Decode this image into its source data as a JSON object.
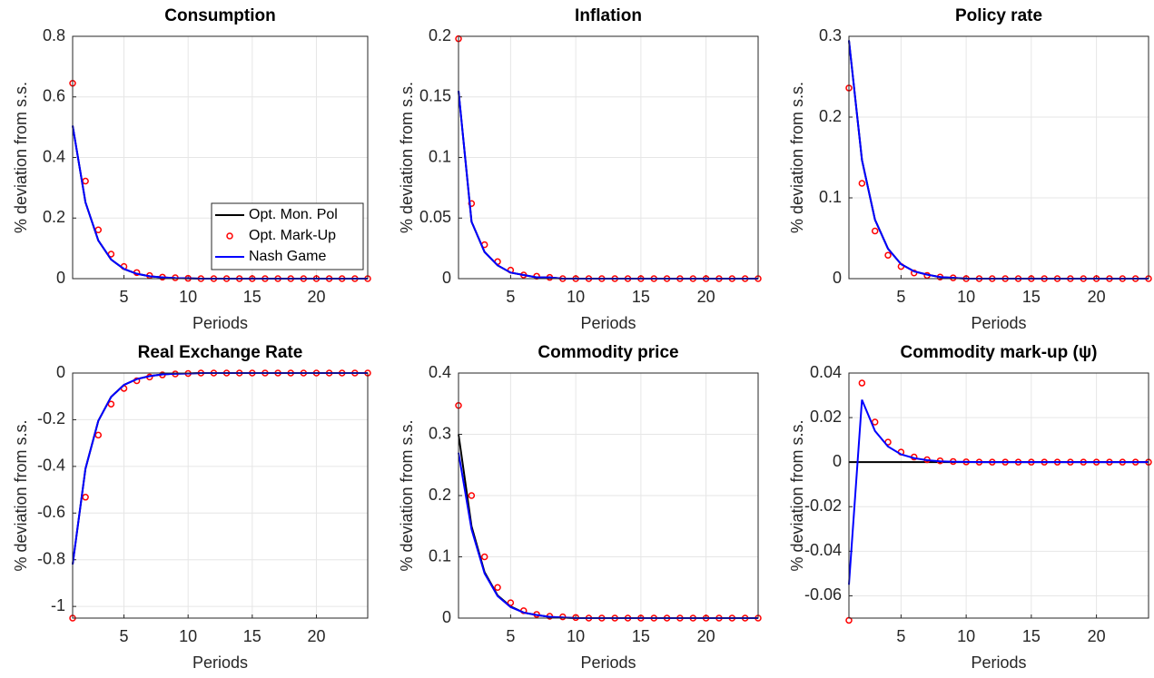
{
  "chart_data": [
    {
      "type": "line",
      "title": "Consumption",
      "xlabel": "Periods",
      "ylabel": "% deviation from s.s.",
      "x": [
        1,
        2,
        3,
        4,
        5,
        6,
        7,
        8,
        9,
        10,
        11,
        12,
        13,
        14,
        15,
        16,
        17,
        18,
        19,
        20,
        21,
        22,
        23,
        24
      ],
      "xlim": [
        1,
        24
      ],
      "xticks": [
        5,
        10,
        15,
        20
      ],
      "ylim": [
        0,
        0.8
      ],
      "yticks": [
        0,
        0.2,
        0.4,
        0.6,
        0.8
      ],
      "grid": true,
      "legend": "southeast",
      "series": [
        {
          "name": "Opt. Mon. Pol",
          "color": "#000000",
          "mode": "line",
          "values": [
            0.505,
            0.252,
            0.126,
            0.063,
            0.032,
            0.016,
            0.008,
            0.004,
            0.002,
            0.001,
            0,
            0,
            0,
            0,
            0,
            0,
            0,
            0,
            0,
            0,
            0,
            0,
            0,
            0
          ]
        },
        {
          "name": "Opt. Mark-Up",
          "color": "#ff0000",
          "mode": "markers",
          "values": [
            0.645,
            0.322,
            0.161,
            0.081,
            0.04,
            0.02,
            0.01,
            0.005,
            0.003,
            0.001,
            0,
            0,
            0,
            0,
            0,
            0,
            0,
            0,
            0,
            0,
            0,
            0,
            0,
            0
          ]
        },
        {
          "name": "Nash Game",
          "color": "#0000ff",
          "mode": "line",
          "values": [
            0.505,
            0.252,
            0.126,
            0.063,
            0.032,
            0.016,
            0.008,
            0.004,
            0.002,
            0.001,
            0,
            0,
            0,
            0,
            0,
            0,
            0,
            0,
            0,
            0,
            0,
            0,
            0,
            0
          ]
        }
      ]
    },
    {
      "type": "line",
      "title": "Inflation",
      "xlabel": "Periods",
      "ylabel": "% deviation from s.s.",
      "x": [
        1,
        2,
        3,
        4,
        5,
        6,
        7,
        8,
        9,
        10,
        11,
        12,
        13,
        14,
        15,
        16,
        17,
        18,
        19,
        20,
        21,
        22,
        23,
        24
      ],
      "xlim": [
        1,
        24
      ],
      "xticks": [
        5,
        10,
        15,
        20
      ],
      "ylim": [
        0,
        0.2
      ],
      "yticks": [
        0,
        0.05,
        0.1,
        0.15,
        0.2
      ],
      "grid": true,
      "series": [
        {
          "color": "#000000",
          "mode": "line",
          "values": [
            0.155,
            0.047,
            0.022,
            0.011,
            0.005,
            0.003,
            0.001,
            0.001,
            0,
            0,
            0,
            0,
            0,
            0,
            0,
            0,
            0,
            0,
            0,
            0,
            0,
            0,
            0,
            0
          ]
        },
        {
          "color": "#ff0000",
          "mode": "markers",
          "values": [
            0.198,
            0.062,
            0.028,
            0.014,
            0.007,
            0.003,
            0.002,
            0.001,
            0,
            0,
            0,
            0,
            0,
            0,
            0,
            0,
            0,
            0,
            0,
            0,
            0,
            0,
            0,
            0
          ]
        },
        {
          "color": "#0000ff",
          "mode": "line",
          "values": [
            0.155,
            0.047,
            0.022,
            0.011,
            0.005,
            0.003,
            0.001,
            0.001,
            0,
            0,
            0,
            0,
            0,
            0,
            0,
            0,
            0,
            0,
            0,
            0,
            0,
            0,
            0,
            0
          ]
        }
      ]
    },
    {
      "type": "line",
      "title": "Policy rate",
      "xlabel": "Periods",
      "ylabel": "% deviation from s.s.",
      "x": [
        1,
        2,
        3,
        4,
        5,
        6,
        7,
        8,
        9,
        10,
        11,
        12,
        13,
        14,
        15,
        16,
        17,
        18,
        19,
        20,
        21,
        22,
        23,
        24
      ],
      "xlim": [
        1,
        24
      ],
      "xticks": [
        5,
        10,
        15,
        20
      ],
      "ylim": [
        0,
        0.3
      ],
      "yticks": [
        0,
        0.1,
        0.2,
        0.3
      ],
      "grid": true,
      "series": [
        {
          "color": "#000000",
          "mode": "line",
          "values": [
            0.295,
            0.147,
            0.073,
            0.037,
            0.018,
            0.009,
            0.005,
            0.002,
            0.001,
            0,
            0,
            0,
            0,
            0,
            0,
            0,
            0,
            0,
            0,
            0,
            0,
            0,
            0,
            0
          ]
        },
        {
          "color": "#ff0000",
          "mode": "markers",
          "values": [
            0.236,
            0.118,
            0.059,
            0.029,
            0.015,
            0.007,
            0.004,
            0.002,
            0.001,
            0,
            0,
            0,
            0,
            0,
            0,
            0,
            0,
            0,
            0,
            0,
            0,
            0,
            0,
            0
          ]
        },
        {
          "color": "#0000ff",
          "mode": "line",
          "values": [
            0.295,
            0.147,
            0.073,
            0.037,
            0.018,
            0.009,
            0.005,
            0.002,
            0.001,
            0,
            0,
            0,
            0,
            0,
            0,
            0,
            0,
            0,
            0,
            0,
            0,
            0,
            0,
            0
          ]
        }
      ]
    },
    {
      "type": "line",
      "title": "Real Exchange Rate",
      "xlabel": "Periods",
      "ylabel": "% deviation from s.s.",
      "x": [
        1,
        2,
        3,
        4,
        5,
        6,
        7,
        8,
        9,
        10,
        11,
        12,
        13,
        14,
        15,
        16,
        17,
        18,
        19,
        20,
        21,
        22,
        23,
        24
      ],
      "xlim": [
        1,
        24
      ],
      "xticks": [
        5,
        10,
        15,
        20
      ],
      "ylim": [
        -1.05,
        0
      ],
      "yticks": [
        -1,
        -0.8,
        -0.6,
        -0.4,
        -0.2,
        0
      ],
      "grid": true,
      "series": [
        {
          "color": "#000000",
          "mode": "line",
          "values": [
            -0.82,
            -0.41,
            -0.205,
            -0.102,
            -0.051,
            -0.026,
            -0.013,
            -0.006,
            -0.003,
            -0.002,
            0,
            0,
            0,
            0,
            0,
            0,
            0,
            0,
            0,
            0,
            0,
            0,
            0,
            0
          ]
        },
        {
          "color": "#ff0000",
          "mode": "markers",
          "values": [
            -1.05,
            -0.532,
            -0.266,
            -0.133,
            -0.066,
            -0.033,
            -0.017,
            -0.008,
            -0.004,
            -0.002,
            0,
            0,
            0,
            0,
            0,
            0,
            0,
            0,
            0,
            0,
            0,
            0,
            0,
            0
          ]
        },
        {
          "color": "#0000ff",
          "mode": "line",
          "values": [
            -0.82,
            -0.41,
            -0.205,
            -0.102,
            -0.051,
            -0.026,
            -0.013,
            -0.006,
            -0.003,
            -0.002,
            0,
            0,
            0,
            0,
            0,
            0,
            0,
            0,
            0,
            0,
            0,
            0,
            0,
            0
          ]
        }
      ]
    },
    {
      "type": "line",
      "title": "Commodity price",
      "xlabel": "Periods",
      "ylabel": "% deviation from s.s.",
      "x": [
        1,
        2,
        3,
        4,
        5,
        6,
        7,
        8,
        9,
        10,
        11,
        12,
        13,
        14,
        15,
        16,
        17,
        18,
        19,
        20,
        21,
        22,
        23,
        24
      ],
      "xlim": [
        1,
        24
      ],
      "xticks": [
        5,
        10,
        15,
        20
      ],
      "ylim": [
        0,
        0.4
      ],
      "yticks": [
        0,
        0.1,
        0.2,
        0.3,
        0.4
      ],
      "grid": true,
      "series": [
        {
          "color": "#000000",
          "mode": "line",
          "values": [
            0.3,
            0.15,
            0.075,
            0.037,
            0.019,
            0.009,
            0.005,
            0.002,
            0.001,
            0,
            0,
            0,
            0,
            0,
            0,
            0,
            0,
            0,
            0,
            0,
            0,
            0,
            0,
            0
          ]
        },
        {
          "color": "#ff0000",
          "mode": "markers",
          "values": [
            0.347,
            0.2,
            0.1,
            0.05,
            0.025,
            0.012,
            0.006,
            0.003,
            0.002,
            0.001,
            0,
            0,
            0,
            0,
            0,
            0,
            0,
            0,
            0,
            0,
            0,
            0,
            0,
            0
          ]
        },
        {
          "color": "#0000ff",
          "mode": "line",
          "values": [
            0.27,
            0.145,
            0.073,
            0.036,
            0.018,
            0.009,
            0.005,
            0.002,
            0.001,
            0,
            0,
            0,
            0,
            0,
            0,
            0,
            0,
            0,
            0,
            0,
            0,
            0,
            0,
            0
          ]
        }
      ]
    },
    {
      "type": "line",
      "title": "Commodity mark-up (ψ)",
      "xlabel": "Periods",
      "ylabel": "% deviation from s.s.",
      "x": [
        1,
        2,
        3,
        4,
        5,
        6,
        7,
        8,
        9,
        10,
        11,
        12,
        13,
        14,
        15,
        16,
        17,
        18,
        19,
        20,
        21,
        22,
        23,
        24
      ],
      "xlim": [
        1,
        24
      ],
      "xticks": [
        5,
        10,
        15,
        20
      ],
      "ylim": [
        -0.07,
        0.04
      ],
      "yticks": [
        -0.06,
        -0.04,
        -0.02,
        0,
        0.02,
        0.04
      ],
      "grid": true,
      "series": [
        {
          "color": "#000000",
          "mode": "line",
          "values": [
            0,
            0,
            0,
            0,
            0,
            0,
            0,
            0,
            0,
            0,
            0,
            0,
            0,
            0,
            0,
            0,
            0,
            0,
            0,
            0,
            0,
            0,
            0,
            0
          ]
        },
        {
          "color": "#ff0000",
          "mode": "markers",
          "values": [
            -0.071,
            0.0355,
            0.018,
            0.009,
            0.0045,
            0.0023,
            0.0011,
            0.0006,
            0.0003,
            0.0001,
            0,
            0,
            0,
            0,
            0,
            0,
            0,
            0,
            0,
            0,
            0,
            0,
            0,
            0
          ]
        },
        {
          "color": "#0000ff",
          "mode": "line",
          "values": [
            -0.055,
            0.028,
            0.014,
            0.007,
            0.0035,
            0.0018,
            0.0009,
            0.0004,
            0.0002,
            0.0001,
            0,
            0,
            0,
            0,
            0,
            0,
            0,
            0,
            0,
            0,
            0,
            0,
            0,
            0
          ]
        }
      ]
    }
  ]
}
